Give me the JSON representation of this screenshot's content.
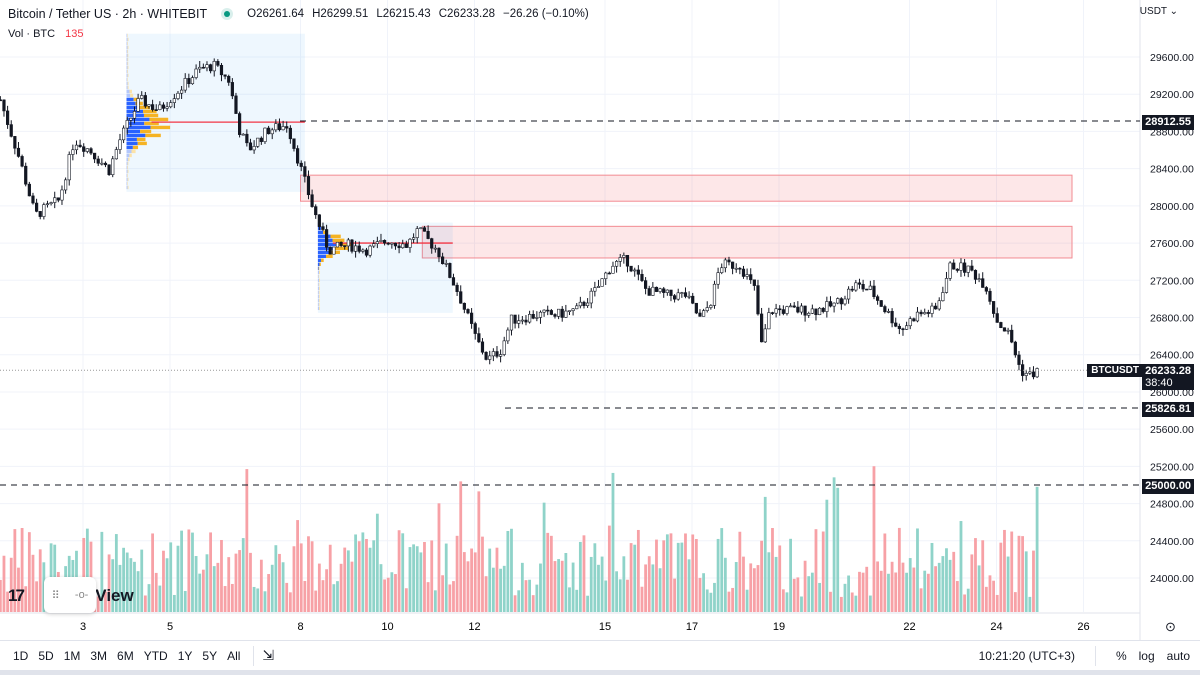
{
  "header": {
    "title": "Bitcoin / Tether US · 2h · WHITEBIT",
    "open": "O26261.64",
    "high": "H26299.51",
    "low": "L26215.43",
    "close": "C26233.28",
    "change": "−26.26 (−0.10%)",
    "status_icon": "market-open-dot",
    "vol_label": "Vol · BTC",
    "vol_value": "135"
  },
  "axis": {
    "currency": "USDT ⌄",
    "symbol_tag": "BTCUSDT",
    "price_tag": "26233.28",
    "countdown": "38:40",
    "levels": [
      "28912.55",
      "25826.81",
      "25000.00"
    ],
    "ticks": [
      29600,
      29200,
      28800,
      28400,
      28000,
      27600,
      27200,
      26800,
      26400,
      26000,
      25600,
      25200,
      24800,
      24400,
      24000
    ],
    "x_ticks": [
      "3",
      "5",
      "8",
      "10",
      "12",
      "15",
      "17",
      "19",
      "22",
      "24",
      "26"
    ]
  },
  "colors": {
    "up": "#089981",
    "down": "#f23645",
    "vol_up": "#8fd3c9",
    "vol_down": "#f7a1a6",
    "zone": "#f23645",
    "profile_bg": "#e3f2fd"
  },
  "chart_data": {
    "type": "candlestick",
    "x_unit": "day of month",
    "price_path": [
      [
        1.1,
        29140
      ],
      [
        1.55,
        28490
      ],
      [
        1.9,
        27900
      ],
      [
        2.45,
        28060
      ],
      [
        2.8,
        28710
      ],
      [
        3.15,
        28600
      ],
      [
        3.6,
        28385
      ],
      [
        3.85,
        28710
      ],
      [
        4.3,
        29140
      ],
      [
        4.75,
        29030
      ],
      [
        5.2,
        29245
      ],
      [
        5.65,
        29460
      ],
      [
        6.0,
        29510
      ],
      [
        6.35,
        29350
      ],
      [
        6.6,
        28815
      ],
      [
        6.8,
        28600
      ],
      [
        7.25,
        28815
      ],
      [
        7.7,
        28870
      ],
      [
        7.95,
        28490
      ],
      [
        8.3,
        27955
      ],
      [
        8.65,
        27525
      ],
      [
        9.1,
        27580
      ],
      [
        9.55,
        27525
      ],
      [
        10.0,
        27630
      ],
      [
        10.45,
        27580
      ],
      [
        10.7,
        27740
      ],
      [
        11.15,
        27525
      ],
      [
        11.6,
        27095
      ],
      [
        12.05,
        26560
      ],
      [
        12.3,
        26345
      ],
      [
        12.6,
        26450
      ],
      [
        12.85,
        26775
      ],
      [
        13.45,
        26830
      ],
      [
        13.9,
        26830
      ],
      [
        14.35,
        26880
      ],
      [
        14.8,
        27095
      ],
      [
        15.15,
        27365
      ],
      [
        15.5,
        27420
      ],
      [
        15.95,
        27095
      ],
      [
        16.4,
        27040
      ],
      [
        16.85,
        27040
      ],
      [
        17.2,
        26775
      ],
      [
        17.45,
        26990
      ],
      [
        17.65,
        27365
      ],
      [
        18.1,
        27365
      ],
      [
        18.45,
        27095
      ],
      [
        18.6,
        26505
      ],
      [
        18.8,
        26880
      ],
      [
        19.4,
        26880
      ],
      [
        19.85,
        26880
      ],
      [
        20.3,
        26940
      ],
      [
        20.75,
        27150
      ],
      [
        21.1,
        27095
      ],
      [
        21.45,
        26880
      ],
      [
        21.8,
        26665
      ],
      [
        22.15,
        26830
      ],
      [
        22.6,
        26880
      ],
      [
        22.95,
        27365
      ],
      [
        23.4,
        27310
      ],
      [
        23.75,
        27150
      ],
      [
        24.0,
        26775
      ],
      [
        24.3,
        26610
      ],
      [
        24.55,
        26235
      ],
      [
        24.75,
        26180
      ],
      [
        25.0,
        26233
      ]
    ],
    "volume_profiles": [
      {
        "from_day": 4.0,
        "to_day": 8.1,
        "high": 29850,
        "low": 28150,
        "poc": 28900
      },
      {
        "from_day": 8.4,
        "to_day": 11.5,
        "high": 27820,
        "low": 26850,
        "poc": 27600
      }
    ],
    "zones": [
      {
        "from_day": 8.0,
        "high": 28330,
        "low": 28050
      },
      {
        "from_day": 10.8,
        "high": 27780,
        "low": 27440
      }
    ]
  }
}
